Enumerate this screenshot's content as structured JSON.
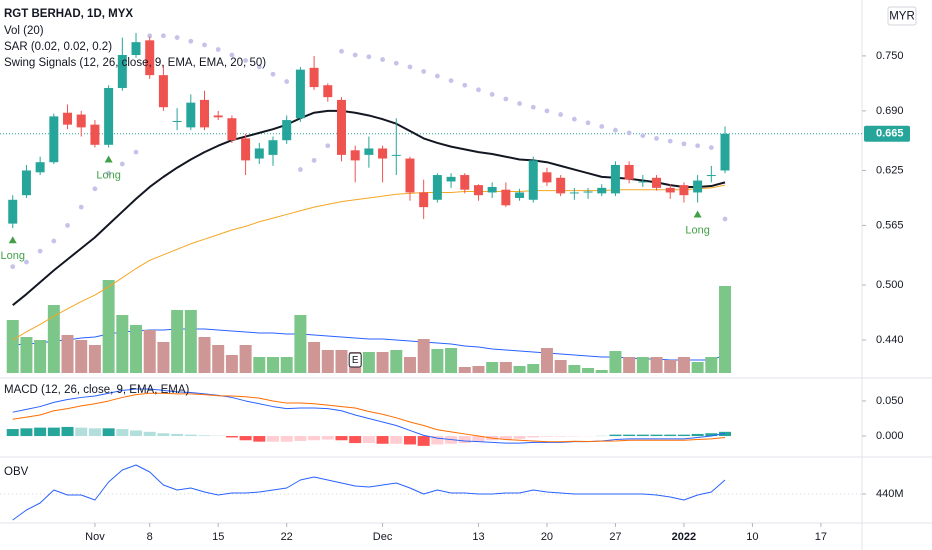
{
  "chart_data": [
    {
      "type": "candlestick",
      "title": "RGT BERHAD, 1D, MYX",
      "currency": "MYR",
      "up_color": "#26a69a",
      "down_color": "#ef5350",
      "xlim": [
        -0.93,
        62.0
      ],
      "xticks": [
        {
          "value": 6,
          "label": "Nov"
        },
        {
          "value": 10,
          "label": "8"
        },
        {
          "value": 15,
          "label": "15"
        },
        {
          "value": 20,
          "label": "22"
        },
        {
          "value": 27,
          "label": "Dec"
        },
        {
          "value": 34,
          "label": "13"
        },
        {
          "value": 39,
          "label": "20"
        },
        {
          "value": 44,
          "label": "27"
        },
        {
          "value": 49,
          "label": "2022",
          "bold": true
        },
        {
          "value": 54,
          "label": "10"
        },
        {
          "value": 59,
          "label": "17"
        }
      ],
      "ylim": [
        0.404,
        0.811
      ],
      "yticks": [
        {
          "value": 0.75,
          "label": "0.750"
        },
        {
          "value": 0.69,
          "label": "0.690"
        },
        {
          "value": 0.625,
          "label": "0.625"
        },
        {
          "value": 0.565,
          "label": "0.565"
        },
        {
          "value": 0.5,
          "label": "0.500"
        },
        {
          "value": 0.44,
          "label": "0.440"
        }
      ],
      "x": [
        0,
        1,
        2,
        3,
        4,
        5,
        6,
        7,
        8,
        9,
        10,
        11,
        12,
        13,
        14,
        15,
        16,
        17,
        18,
        19,
        20,
        21,
        22,
        23,
        24,
        25,
        26,
        27,
        28,
        29,
        30,
        31,
        32,
        33,
        34,
        35,
        36,
        37,
        38,
        39,
        40,
        41,
        42,
        43,
        44,
        45,
        46,
        47,
        48,
        49,
        50,
        51,
        52
      ],
      "open": [
        0.567,
        0.598,
        0.623,
        0.634,
        0.688,
        0.686,
        0.675,
        0.653,
        0.715,
        0.751,
        0.767,
        0.729,
        0.678,
        0.672,
        0.702,
        0.685,
        0.682,
        0.66,
        0.638,
        0.642,
        0.658,
        0.682,
        0.737,
        0.718,
        0.702,
        0.647,
        0.642,
        0.649,
        0.641,
        0.638,
        0.601,
        0.593,
        0.613,
        0.62,
        0.609,
        0.601,
        0.604,
        0.595,
        0.593,
        0.623,
        0.617,
        0.6,
        0.601,
        0.6,
        0.6,
        0.631,
        0.612,
        0.617,
        0.606,
        0.609,
        0.601,
        0.619,
        0.625
      ],
      "high": [
        0.598,
        0.631,
        0.64,
        0.687,
        0.697,
        0.69,
        0.68,
        0.718,
        0.77,
        0.775,
        0.771,
        0.74,
        0.693,
        0.708,
        0.712,
        0.69,
        0.685,
        0.665,
        0.655,
        0.662,
        0.685,
        0.738,
        0.75,
        0.72,
        0.705,
        0.652,
        0.662,
        0.652,
        0.682,
        0.64,
        0.615,
        0.622,
        0.622,
        0.622,
        0.61,
        0.612,
        0.612,
        0.605,
        0.64,
        0.628,
        0.62,
        0.606,
        0.606,
        0.61,
        0.635,
        0.635,
        0.62,
        0.62,
        0.61,
        0.612,
        0.62,
        0.63,
        0.673
      ],
      "low": [
        0.562,
        0.595,
        0.62,
        0.632,
        0.67,
        0.662,
        0.65,
        0.65,
        0.712,
        0.748,
        0.725,
        0.69,
        0.669,
        0.669,
        0.669,
        0.68,
        0.655,
        0.62,
        0.632,
        0.63,
        0.654,
        0.678,
        0.713,
        0.7,
        0.635,
        0.612,
        0.628,
        0.612,
        0.62,
        0.592,
        0.572,
        0.59,
        0.606,
        0.6,
        0.592,
        0.595,
        0.585,
        0.592,
        0.59,
        0.608,
        0.597,
        0.593,
        0.594,
        0.597,
        0.597,
        0.611,
        0.607,
        0.603,
        0.594,
        0.59,
        0.59,
        0.612,
        0.622
      ],
      "close": [
        0.593,
        0.625,
        0.634,
        0.684,
        0.675,
        0.672,
        0.653,
        0.715,
        0.751,
        0.765,
        0.729,
        0.694,
        0.679,
        0.699,
        0.672,
        0.683,
        0.658,
        0.636,
        0.649,
        0.658,
        0.68,
        0.735,
        0.716,
        0.705,
        0.642,
        0.636,
        0.649,
        0.638,
        0.642,
        0.601,
        0.585,
        0.62,
        0.618,
        0.604,
        0.598,
        0.607,
        0.587,
        0.601,
        0.636,
        0.612,
        0.6,
        0.601,
        0.602,
        0.606,
        0.631,
        0.615,
        0.613,
        0.606,
        0.601,
        0.598,
        0.614,
        0.62,
        0.665
      ],
      "series": [
        {
          "name": "SAR (0.02, 0.02, 0.2)",
          "style": "dots",
          "color": "#c5c3ea",
          "values": [
            0.52,
            0.525,
            0.537,
            0.548,
            0.565,
            0.585,
            0.605,
            0.622,
            0.632,
            0.645,
            0.772,
            0.772,
            0.77,
            0.766,
            0.762,
            0.757,
            0.751,
            0.745,
            0.738,
            0.73,
            0.722,
            0.626,
            0.636,
            0.652,
            0.755,
            0.751,
            0.749,
            0.746,
            0.742,
            0.738,
            0.733,
            0.728,
            0.723,
            0.718,
            0.713,
            0.708,
            0.703,
            0.698,
            0.694,
            0.69,
            0.686,
            0.681,
            0.677,
            0.673,
            0.669,
            0.666,
            0.663,
            0.66,
            0.657,
            0.654,
            0.652,
            0.65,
            0.572
          ]
        },
        {
          "name": "Swing Signals (12, 26, close, 9, EMA, EMA, 20, 50)",
          "style": "line",
          "color": "#131722",
          "width": 2,
          "values": [
            0.478,
            0.49,
            0.503,
            0.516,
            0.528,
            0.54,
            0.552,
            0.566,
            0.58,
            0.594,
            0.607,
            0.618,
            0.628,
            0.637,
            0.645,
            0.652,
            0.658,
            0.662,
            0.666,
            0.67,
            0.675,
            0.682,
            0.688,
            0.69,
            0.69,
            0.688,
            0.685,
            0.681,
            0.676,
            0.668,
            0.66,
            0.655,
            0.651,
            0.648,
            0.645,
            0.643,
            0.64,
            0.637,
            0.636,
            0.634,
            0.63,
            0.626,
            0.622,
            0.618,
            0.617,
            0.616,
            0.614,
            0.612,
            0.609,
            0.607,
            0.607,
            0.608,
            0.612
          ]
        },
        {
          "style": "line",
          "color": "#f5a623",
          "width": 1,
          "values": [
            0.44,
            0.449,
            0.457,
            0.466,
            0.474,
            0.482,
            0.489,
            0.498,
            0.508,
            0.518,
            0.527,
            0.533,
            0.539,
            0.545,
            0.55,
            0.555,
            0.56,
            0.564,
            0.569,
            0.573,
            0.577,
            0.581,
            0.585,
            0.588,
            0.591,
            0.593,
            0.595,
            0.597,
            0.599,
            0.6,
            0.601,
            0.601,
            0.601,
            0.602,
            0.602,
            0.602,
            0.602,
            0.602,
            0.603,
            0.603,
            0.603,
            0.603,
            0.603,
            0.603,
            0.604,
            0.604,
            0.604,
            0.604,
            0.604,
            0.604,
            0.605,
            0.606,
            0.609
          ]
        }
      ],
      "signals": [
        {
          "x": 0,
          "label": "Long"
        },
        {
          "x": 7,
          "label": "Long"
        },
        {
          "x": 50,
          "label": "Long"
        }
      ],
      "signal_color": "#43a047",
      "events": [
        {
          "x": 25,
          "label": "E"
        }
      ],
      "last_price": {
        "value": 0.665,
        "label": "0.665"
      }
    },
    {
      "type": "volume",
      "title": "Vol (20)",
      "ylim": [
        0,
        100
      ],
      "up_color": "#7cc68a",
      "down_color": "#cf9696",
      "ma_color": "#2962ff",
      "values": [
        53,
        36,
        33,
        68,
        38,
        33,
        28,
        93,
        58,
        48,
        43,
        31,
        63,
        63,
        36,
        28,
        18,
        28,
        16,
        16,
        16,
        58,
        31,
        23,
        23,
        21,
        21,
        21,
        23,
        16,
        34,
        24,
        25,
        6,
        7,
        11,
        11,
        7,
        9,
        25,
        13,
        8,
        5,
        3,
        22,
        16,
        16,
        16,
        13,
        16,
        11,
        16,
        87
      ],
      "ma_values": [
        28,
        29,
        30,
        32,
        33,
        35,
        36,
        39,
        41,
        42,
        43,
        43,
        44,
        44,
        44,
        43,
        42,
        41,
        40,
        40,
        39,
        39,
        38,
        37,
        36,
        35,
        34,
        34,
        33,
        32,
        31,
        30,
        29,
        27,
        26,
        24,
        23,
        22,
        21,
        20,
        19,
        18,
        17,
        16,
        16,
        15,
        14,
        14,
        13,
        13,
        13,
        13,
        18
      ]
    },
    {
      "type": "macd",
      "title": "MACD (12, 26, close, 9, EMA, EMA)",
      "ylim": [
        -0.027,
        0.077
      ],
      "yticks": [
        {
          "value": 0.05,
          "label": "0.050"
        },
        {
          "value": 0,
          "label": "0.000"
        }
      ],
      "hist_colors": [
        "#26a69a",
        "#b2dfdb",
        "#ffcdd2",
        "#ff5252"
      ],
      "macd_color": "#2962ff",
      "signal_color": "#ff6d00",
      "hist": [
        0.01,
        0.011,
        0.012,
        0.012,
        0.013,
        0.012,
        0.011,
        0.011,
        0.01,
        0.008,
        0.006,
        0.004,
        0.003,
        0.002,
        0.001,
        0.0005,
        -0.002,
        -0.006,
        -0.008,
        -0.008,
        -0.008,
        -0.007,
        -0.006,
        -0.005,
        -0.006,
        -0.01,
        -0.01,
        -0.011,
        -0.011,
        -0.012,
        -0.014,
        -0.012,
        -0.011,
        -0.01,
        -0.008,
        -0.006,
        -0.005,
        -0.004,
        -0.002,
        -0.001,
        -0.0008,
        -0.0005,
        -0.0003,
        0.0002,
        0.002,
        0.002,
        0.002,
        0.002,
        0.002,
        0.002,
        0.003,
        0.004,
        0.006
      ],
      "macd": [
        0.034,
        0.038,
        0.042,
        0.048,
        0.052,
        0.055,
        0.057,
        0.061,
        0.065,
        0.067,
        0.067,
        0.065,
        0.063,
        0.062,
        0.06,
        0.058,
        0.055,
        0.05,
        0.046,
        0.042,
        0.039,
        0.04,
        0.04,
        0.039,
        0.036,
        0.03,
        0.025,
        0.02,
        0.015,
        0.008,
        0.001,
        -0.003,
        -0.005,
        -0.007,
        -0.008,
        -0.009,
        -0.01,
        -0.01,
        -0.009,
        -0.009,
        -0.009,
        -0.008,
        -0.008,
        -0.007,
        -0.005,
        -0.004,
        -0.004,
        -0.004,
        -0.004,
        -0.004,
        -0.002,
        0.0,
        0.004
      ],
      "signal": [
        0.024,
        0.027,
        0.03,
        0.036,
        0.039,
        0.043,
        0.046,
        0.05,
        0.055,
        0.059,
        0.061,
        0.061,
        0.06,
        0.06,
        0.059,
        0.0575,
        0.057,
        0.056,
        0.054,
        0.05,
        0.047,
        0.047,
        0.046,
        0.044,
        0.042,
        0.04,
        0.035,
        0.031,
        0.026,
        0.02,
        0.015,
        0.009,
        0.006,
        0.003,
        0.0,
        -0.003,
        -0.005,
        -0.006,
        -0.007,
        -0.008,
        -0.0082,
        -0.0075,
        -0.0077,
        -0.0072,
        -0.007,
        -0.006,
        -0.006,
        -0.006,
        -0.006,
        -0.006,
        -0.005,
        -0.004,
        -0.002
      ]
    },
    {
      "type": "line",
      "title": "OBV",
      "color": "#2962ff",
      "ylim": [
        426000000,
        457000000
      ],
      "yticks": [
        {
          "value": 440000000,
          "label": "440M"
        }
      ],
      "values": [
        427000000,
        432000000,
        435500000,
        442000000,
        439500000,
        439500000,
        437000000,
        446000000,
        452000000,
        454500000,
        451000000,
        444500000,
        442000000,
        443000000,
        441000000,
        439500000,
        440500000,
        440500000,
        441000000,
        442000000,
        443000000,
        447000000,
        448500000,
        447000000,
        445500000,
        444000000,
        443500000,
        444500000,
        445500000,
        443000000,
        440000000,
        442000000,
        440500000,
        440500000,
        440000000,
        440000000,
        440500000,
        440500000,
        442000000,
        441000000,
        440500000,
        440000000,
        440000000,
        440000000,
        440000000,
        440000000,
        440000000,
        439500000,
        438500000,
        437000000,
        439500000,
        441000000,
        447000000
      ]
    }
  ]
}
